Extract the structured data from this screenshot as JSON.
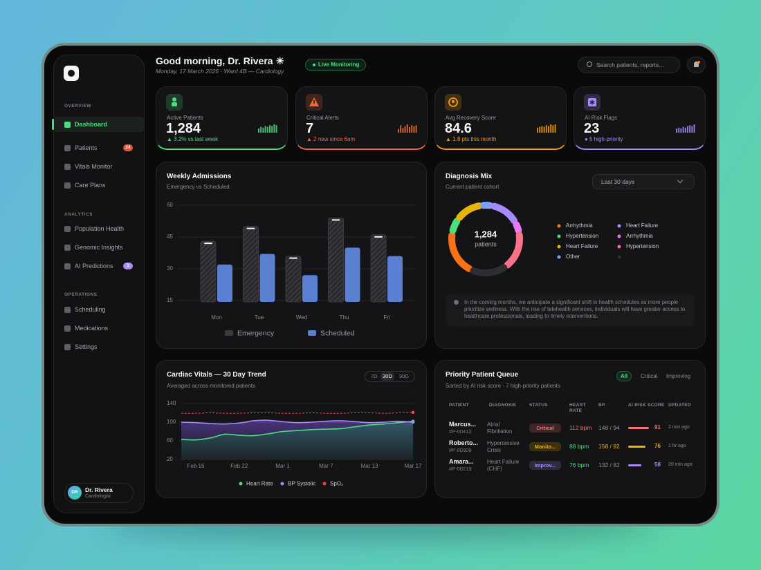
{
  "sidebar": {
    "sections": [
      {
        "title": "OVERVIEW",
        "items": [
          {
            "label": "Dashboard",
            "active": true
          },
          {
            "label": "Patients",
            "badge": "24",
            "badge_color": "#e0533d"
          },
          {
            "label": "Vitals Monitor"
          },
          {
            "label": "Care Plans"
          }
        ]
      },
      {
        "title": "ANALYTICS",
        "items": [
          {
            "label": "Population Health"
          },
          {
            "label": "Genomic Insights"
          },
          {
            "label": "AI Predictions",
            "badge": "3",
            "badge_color": "#a78bfa"
          }
        ]
      },
      {
        "title": "OPERATIONS",
        "items": [
          {
            "label": "Scheduling"
          },
          {
            "label": "Medications"
          },
          {
            "label": "Settings"
          }
        ]
      }
    ],
    "user": {
      "initials": "DR",
      "name": "Dr. Rivera",
      "role": "Cardiologist"
    }
  },
  "header": {
    "greeting": "Good morning, Dr. Rivera ☀",
    "subtitle": "Monday, 17 March 2026 · Ward 4B — Cardiology",
    "status": "Live Monitoring",
    "search_placeholder": "Search patients, reports..."
  },
  "kpis": [
    {
      "label": "Active Patients",
      "value": "1,284",
      "delta": "▲ 3.2% vs last week",
      "color": "#4ade80",
      "spark": [
        5,
        7,
        6,
        8,
        7,
        9,
        8,
        10,
        9
      ]
    },
    {
      "label": "Critical Alerts",
      "value": "7",
      "delta": "▲ 2 new since 6am",
      "color": "#f26b3a",
      "spark": [
        4,
        8,
        5,
        7,
        9,
        6,
        8,
        7,
        8
      ]
    },
    {
      "label": "Avg Recovery Score",
      "value": "84.6",
      "delta": "▲ 1.8 pts this month",
      "color": "#f59e0b",
      "spark": [
        6,
        7,
        8,
        7,
        9,
        8,
        10,
        9,
        10
      ]
    },
    {
      "label": "AI Risk Flags",
      "value": "23",
      "delta": "● 5 high-priority",
      "color": "#a78bfa",
      "spark": [
        5,
        6,
        5,
        7,
        6,
        8,
        9,
        8,
        10
      ]
    }
  ],
  "admissions": {
    "type": "bar",
    "title": "Weekly Admissions",
    "subtitle": "Emergency vs Scheduled",
    "categories": [
      "Mon",
      "Tue",
      "Wed",
      "Thu",
      "Fri"
    ],
    "series": [
      {
        "name": "Emergency",
        "color": "#2e2e32",
        "values": [
          43,
          50,
          36,
          54,
          46
        ]
      },
      {
        "name": "Scheduled",
        "color": "#5b7fd1",
        "values": [
          32,
          37,
          27,
          40,
          36
        ]
      }
    ],
    "ylim": [
      15,
      60
    ],
    "yticks": [
      15,
      30,
      45,
      60
    ],
    "grid": true
  },
  "diagnosis": {
    "type": "donut",
    "title": "Diagnosis Mix",
    "subtitle": "Current patient cohort",
    "filter": "Last 30 days",
    "center_value": "1,284",
    "center_label": "patients",
    "categories": [
      "Arrhythmia",
      "Hypertension",
      "Heart Failure",
      "Other",
      "Heart Failure",
      "Arrhythmia",
      "Hypertension",
      null
    ],
    "values": [
      21,
      7,
      13,
      5,
      14,
      5,
      18,
      17
    ],
    "colors": [
      "#f97316",
      "#4ade80",
      "#eab308",
      "#7aa2f7",
      "#a78bfa",
      "#e879f9",
      "#fb7185",
      "#2e2e32"
    ],
    "note": "In the coming months, we anticipate a significant shift in health schedules as more people prioritize wellness. With the rise of telehealth services, individuals will have greater access to healthcare professionals, leading to timely interventions."
  },
  "vitals": {
    "type": "line",
    "title": "Cardiac Vitals — 30 Day Trend",
    "subtitle": "Averaged across monitored patients",
    "ranges": [
      "7D",
      "30D",
      "90D"
    ],
    "selected": 1,
    "x": [
      null,
      "Feb 16",
      null,
      null,
      "Feb 22",
      null,
      null,
      "Mar 1",
      null,
      null,
      "Mar 7",
      null,
      null,
      "Mar 13",
      null,
      null,
      "Mar 17"
    ],
    "series": [
      {
        "name": "Heart Rate",
        "color": "#4ade80",
        "values": [
          63,
          62,
          66,
          74,
          72,
          71,
          75,
          80,
          82,
          84,
          85,
          86,
          90,
          94,
          96,
          99,
          102
        ]
      },
      {
        "name": "BP Systolic",
        "color": "#a78bfa",
        "values": [
          100,
          99,
          97,
          96,
          98,
          103,
          104,
          101,
          99,
          100,
          102,
          103,
          101,
          99,
          100,
          102,
          100
        ]
      },
      {
        "name": "SpO₂",
        "color": "#ef4444",
        "values": [
          119,
          119,
          120,
          119,
          119,
          120,
          120,
          119,
          119,
          120,
          119,
          119,
          120,
          120,
          119,
          120,
          121
        ]
      }
    ],
    "ylim": [
      20,
      140
    ],
    "yticks": [
      20,
      60,
      100,
      140
    ],
    "grid": true
  },
  "queue": {
    "title": "Priority Patient Queue",
    "subtitle": "Sorted by AI risk score · 7 high-priority patients",
    "tabs": [
      "All",
      "Critical",
      "Improving"
    ],
    "selected": 0,
    "columns": [
      "PATIENT",
      "DIAGNOSIS",
      "STATUS",
      "HEART RATE",
      "BP",
      "AI RISK SCORE",
      "UPDATED"
    ],
    "rows": [
      {
        "name": "Marcus...",
        "id": "#P-00412",
        "diagnosis": "Atrial Fibrillation",
        "status": "Critical",
        "heart_rate": "112 bpm",
        "bp": "148 / 94",
        "risk": 91,
        "updated": "2 min ago",
        "color": "#f87171",
        "hr_color": "#f87171",
        "bp_color": "#8e8e94"
      },
      {
        "name": "Roberto...",
        "id": "#P-00308",
        "diagnosis": "Hypertensive Crisis",
        "status": "Monito...",
        "heart_rate": "88 bpm",
        "bp": "158 / 92",
        "risk": 76,
        "updated": "1 hr ago",
        "color": "#eab308",
        "hr_color": "#4ade80",
        "bp_color": "#eab308"
      },
      {
        "name": "Amara...",
        "id": "#P-00219",
        "diagnosis": "Heart Failure (CHF)",
        "status": "Improv...",
        "heart_rate": "76 bpm",
        "bp": "132 / 82",
        "risk": 58,
        "updated": "20 min ago",
        "color": "#a78bfa",
        "hr_color": "#4ade80",
        "bp_color": "#8e8e94"
      }
    ]
  }
}
